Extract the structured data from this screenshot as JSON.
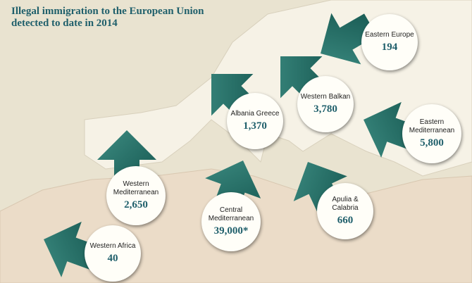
{
  "title": "Illegal immigration to the European Union detected to date in 2014",
  "routes": [
    {
      "name": "Eastern Europe",
      "value": "194"
    },
    {
      "name": "Western Balkan",
      "value": "3,780"
    },
    {
      "name": "Albania Greece",
      "value": "1,370"
    },
    {
      "name": "Eastern Mediterranean",
      "value": "5,800"
    },
    {
      "name": "Western Mediterranean",
      "value": "2,650"
    },
    {
      "name": "Central Mediterranean",
      "value": "39,000*"
    },
    {
      "name": "Apulia & Calabria",
      "value": "660"
    },
    {
      "name": "Western Africa",
      "value": "40"
    }
  ]
}
